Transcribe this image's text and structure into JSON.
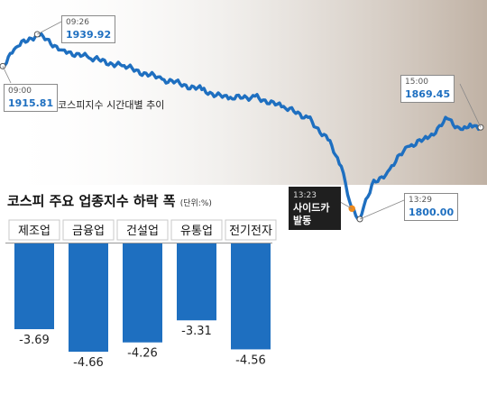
{
  "line_chart": {
    "caption": "코스피지수 시간대별 추이",
    "open": {
      "time": "09:00",
      "value": "1915.81"
    },
    "high": {
      "time": "09:26",
      "value": "1939.92"
    },
    "low": {
      "time": "13:29",
      "value": "1800.00"
    },
    "close": {
      "time": "15:00",
      "value": "1869.45"
    },
    "event": {
      "time": "13:23",
      "label": "사이드카 발동"
    },
    "accent_color": "#1e6fc0"
  },
  "bar_chart": {
    "title": "코스피 주요 업종지수 하락 폭",
    "unit": "(단위:%)",
    "bar_color": "#1e6fc0"
  },
  "chart_data": [
    {
      "type": "line",
      "title": "코스피지수 시간대별 추이",
      "x": [
        "09:00",
        "09:26",
        "13:23",
        "13:29",
        "15:00"
      ],
      "y": [
        1915.81,
        1939.92,
        1808,
        1800.0,
        1869.45
      ],
      "annotations": [
        {
          "x": "09:00",
          "text": "09:00 1915.81"
        },
        {
          "x": "09:26",
          "text": "09:26 1939.92"
        },
        {
          "x": "13:23",
          "text": "13:23 사이드카 발동"
        },
        {
          "x": "13:29",
          "text": "13:29 1800.00"
        },
        {
          "x": "15:00",
          "text": "15:00 1869.45"
        }
      ]
    },
    {
      "type": "bar",
      "title": "코스피 주요 업종지수 하락 폭",
      "unit": "(단위:%)",
      "categories": [
        "제조업",
        "금융업",
        "건설업",
        "유통업",
        "전기전자"
      ],
      "values": [
        -3.69,
        -4.66,
        -4.26,
        -3.31,
        -4.56
      ],
      "value_labels": [
        "-3.69",
        "-4.66",
        "-4.26",
        "-3.31",
        "-4.56"
      ]
    }
  ]
}
